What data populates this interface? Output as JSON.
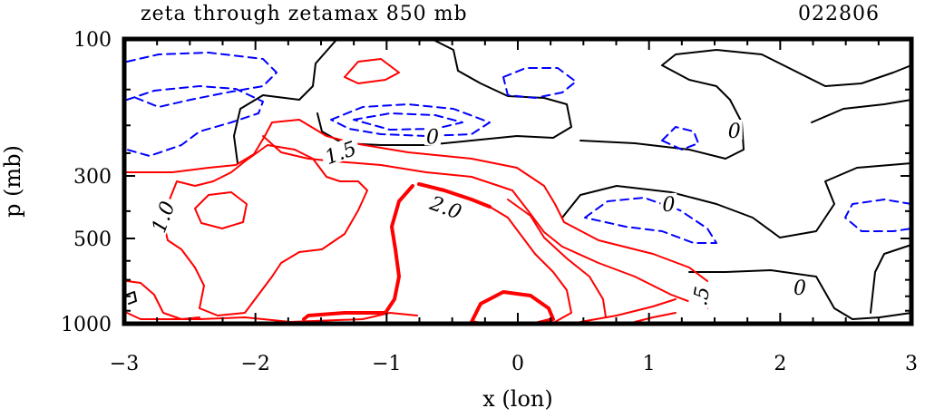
{
  "chart_data": {
    "type": "contour",
    "title": "zeta through zetamax 850 mb",
    "date_label": "022806",
    "xlabel": "x (lon)",
    "ylabel": "p (mb)",
    "xlim": [
      -3,
      3
    ],
    "x_ticks": [
      -3,
      -2,
      -1,
      0,
      1,
      2,
      3
    ],
    "x_tick_labels": [
      "−3",
      "−2",
      "−1",
      "0",
      "1",
      "2",
      "3"
    ],
    "y_ticks": [
      100,
      300,
      500,
      1000
    ],
    "y_tick_labels": [
      "100",
      "300",
      "500",
      "1000"
    ],
    "y_scale": "pressure (inverted)",
    "contour_levels": {
      "negative": "blue dashed",
      "zero": "black solid",
      "positive": "red solid",
      "bold": "red thick at 2.0"
    },
    "contour_labels": [
      {
        "text": "1.0",
        "x": -2.7,
        "p": 420,
        "color": "#000000"
      },
      {
        "text": "1.5",
        "x": -1.35,
        "p": 250,
        "color": "#000000"
      },
      {
        "text": "0",
        "x": -0.65,
        "p": 220,
        "color": "#000000"
      },
      {
        "text": "2.0",
        "x": -0.55,
        "p": 390,
        "color": "#000000"
      },
      {
        "text": "0",
        "x": 1.65,
        "p": 210,
        "color": "#000000"
      },
      {
        "text": "0",
        "x": 1.15,
        "p": 380,
        "color": "#000000"
      },
      {
        "text": "0",
        "x": 2.15,
        "p": 750,
        "color": "#000000"
      },
      {
        "text": ".5",
        "x": 1.4,
        "p": 800,
        "color": "#000000"
      }
    ],
    "grid": false,
    "colors": {
      "negative": "#0000ff",
      "zero": "#000000",
      "positive": "#ff0000"
    }
  }
}
